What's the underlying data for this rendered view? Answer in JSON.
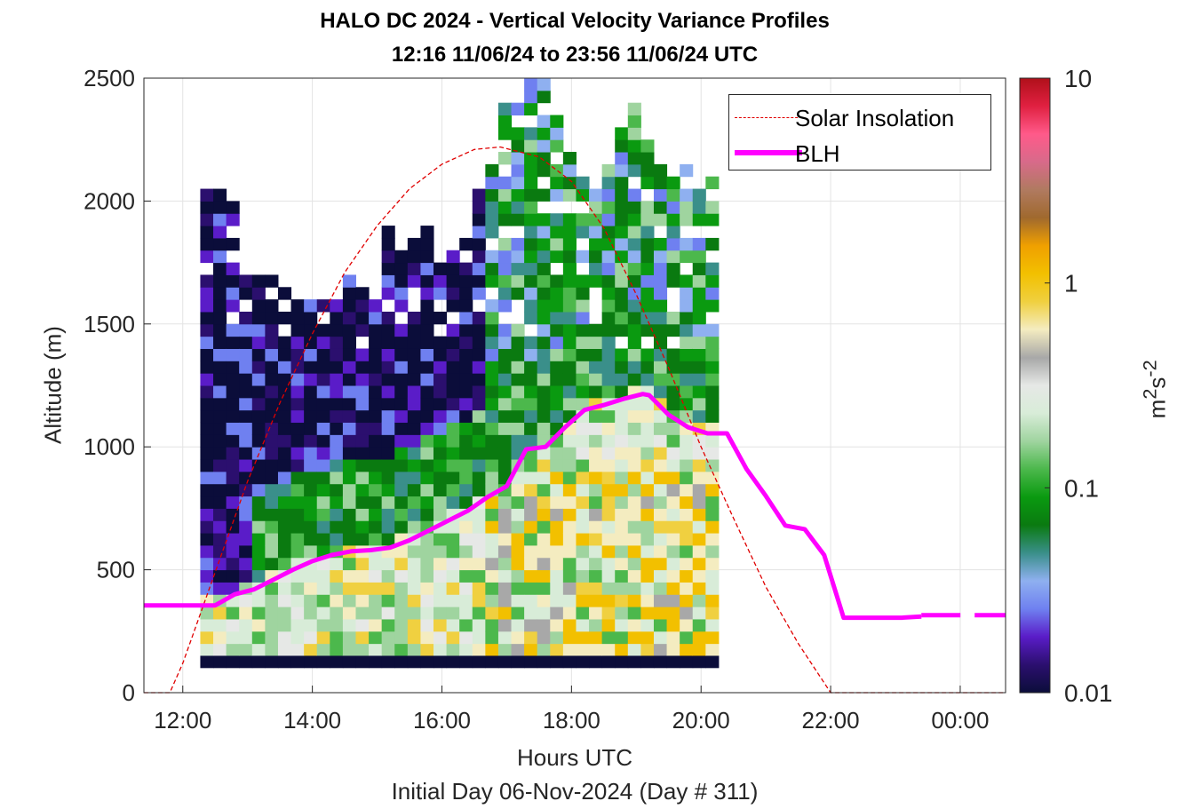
{
  "title": {
    "line1": "HALO DC 2024 - Vertical Velocity Variance Profiles",
    "line2": "12:16 11/06/24 to 23:56 11/06/24  UTC"
  },
  "chart_data": {
    "type": "heatmap",
    "xlabel": "Hours UTC",
    "ylabel": "Altitude (m)",
    "footer": "Initial Day 06-Nov-2024 (Day # 311)",
    "colorbar_label": "m2s-2",
    "x_range_hours": [
      11.4,
      24.7
    ],
    "x_ticks": [
      {
        "value": 12,
        "label": "12:00"
      },
      {
        "value": 14,
        "label": "14:00"
      },
      {
        "value": 16,
        "label": "16:00"
      },
      {
        "value": 18,
        "label": "18:00"
      },
      {
        "value": 20,
        "label": "20:00"
      },
      {
        "value": 22,
        "label": "22:00"
      },
      {
        "value": 24,
        "label": "00:00"
      }
    ],
    "y_range": [
      0,
      2500
    ],
    "y_ticks": [
      0,
      500,
      1000,
      1500,
      2000,
      2500
    ],
    "colorbar": {
      "scale": "log",
      "range": [
        0.01,
        10
      ],
      "ticks": [
        {
          "value": 0.01,
          "label": "0.01"
        },
        {
          "value": 0.1,
          "label": "0.1"
        },
        {
          "value": 1,
          "label": "1"
        },
        {
          "value": 10,
          "label": "10"
        }
      ],
      "colors": [
        "#0b0d3a",
        "#2b0f6e",
        "#5a1cc8",
        "#6f80f0",
        "#8fb0f0",
        "#3a8f8a",
        "#0a7a10",
        "#0a9a10",
        "#4cb84c",
        "#9fd49f",
        "#d8ecd8",
        "#e6e8e6",
        "#a8a8a8",
        "#f4ecc0",
        "#f0d040",
        "#f2c000",
        "#f0a000",
        "#a0692e",
        "#b07a60",
        "#d86a8a",
        "#ff5a8a",
        "#e02040",
        "#b0101a"
      ]
    },
    "grid": true,
    "legend_position": "top-right",
    "series": [
      {
        "name": "Solar Insolation",
        "style": "dashed",
        "color": "#e00000",
        "x": [
          11.4,
          11.8,
          12.0,
          12.5,
          13.0,
          13.5,
          14.0,
          14.5,
          15.0,
          15.5,
          16.0,
          16.5,
          16.9,
          17.5,
          18.0,
          18.5,
          19.0,
          19.5,
          20.0,
          20.5,
          21.0,
          21.5,
          22.0,
          24.7
        ],
        "y": [
          0,
          0,
          120,
          490,
          860,
          1180,
          1460,
          1710,
          1900,
          2050,
          2150,
          2210,
          2220,
          2180,
          2080,
          1890,
          1620,
          1320,
          1000,
          710,
          430,
          200,
          0,
          0
        ]
      },
      {
        "name": "BLH",
        "style": "solid",
        "color": "#ff00ff",
        "x": [
          11.4,
          12.5,
          12.8,
          13.1,
          13.4,
          13.7,
          14.0,
          14.3,
          14.6,
          14.9,
          15.2,
          15.5,
          15.8,
          16.1,
          16.4,
          16.7,
          17.0,
          17.3,
          17.6,
          17.9,
          18.2,
          18.5,
          18.8,
          19.1,
          19.2,
          19.5,
          19.8,
          20.1,
          20.4,
          20.7,
          21.0,
          21.3,
          21.6,
          21.9,
          22.2,
          22.5,
          22.8,
          23.1,
          23.4,
          23.7,
          24.0,
          24.3
        ],
        "y": [
          355,
          355,
          400,
          420,
          460,
          500,
          535,
          560,
          575,
          580,
          590,
          620,
          660,
          700,
          740,
          795,
          840,
          990,
          1000,
          1080,
          1150,
          1170,
          1195,
          1215,
          1210,
          1130,
          1080,
          1055,
          1055,
          910,
          800,
          680,
          665,
          560,
          305,
          305,
          305,
          305,
          310,
          315,
          315,
          315
        ]
      }
    ]
  }
}
